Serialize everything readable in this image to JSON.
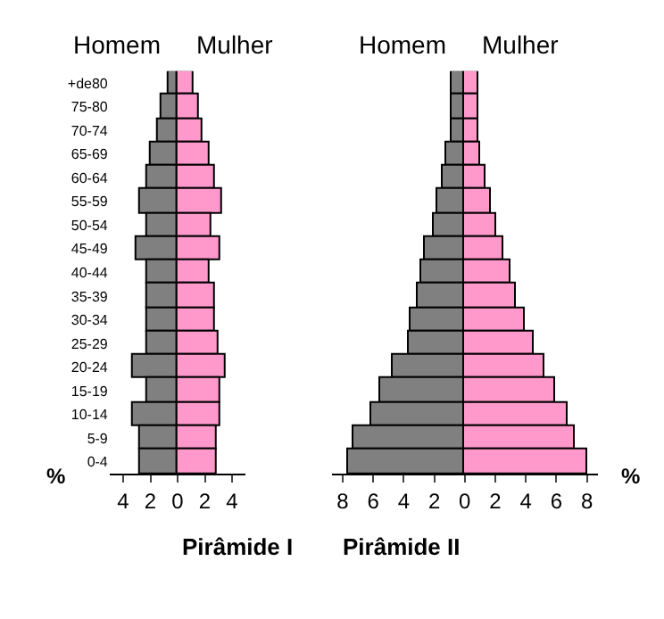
{
  "chart_data": [
    {
      "type": "bar",
      "orientation": "horizontal",
      "stacked": true,
      "title": "Pirâmide I",
      "xlabel": "%",
      "categories": [
        "+de80",
        "75-80",
        "70-74",
        "65-69",
        "60-64",
        "55-59",
        "50-54",
        "45-49",
        "40-44",
        "35-39",
        "30-34",
        "25-29",
        "20-24",
        "15-19",
        "10-14",
        "5-9",
        "0-4"
      ],
      "series": [
        {
          "name": "Homem",
          "color": "#808080",
          "values": [
            -0.7,
            -1.2,
            -1.4,
            -2.0,
            -2.2,
            -2.8,
            -2.2,
            -3.0,
            -2.2,
            -2.2,
            -2.2,
            -2.2,
            -3.3,
            -2.3,
            -3.3,
            -2.8,
            -2.8
          ]
        },
        {
          "name": "Mulher",
          "color": "#ff99cc",
          "values": [
            1.2,
            1.6,
            1.8,
            2.3,
            2.7,
            3.3,
            2.5,
            3.1,
            2.3,
            2.7,
            2.7,
            3.0,
            3.5,
            3.1,
            3.1,
            2.9,
            2.9
          ]
        }
      ],
      "xlim": [
        -5,
        5
      ],
      "xticks": [
        {
          "value": -4,
          "label": "4"
        },
        {
          "value": -2,
          "label": "2"
        },
        0,
        2,
        4
      ]
    },
    {
      "type": "bar",
      "orientation": "horizontal",
      "stacked": true,
      "title": "Pirâmide II",
      "xlabel": "%",
      "tick_labels": "x",
      "categories": [
        null,
        null,
        null,
        null,
        null,
        null,
        null,
        null,
        null,
        null,
        null,
        null,
        null,
        null,
        null,
        null,
        null
      ],
      "series": [
        {
          "name": "Homem",
          "color": "#808080",
          "values": [
            -0.9,
            -0.9,
            -0.9,
            -1.2,
            -1.4,
            -1.8,
            -2.0,
            -2.6,
            -2.8,
            -3.1,
            -3.5,
            -3.7,
            -4.7,
            -5.5,
            -6.1,
            -7.3,
            -7.7
          ]
        },
        {
          "name": "Mulher",
          "color": "#ff99cc",
          "values": [
            0.9,
            0.9,
            0.9,
            1.0,
            1.4,
            1.7,
            2.0,
            2.5,
            3.0,
            3.4,
            3.9,
            4.5,
            5.2,
            5.9,
            6.7,
            7.2,
            8.0
          ]
        }
      ],
      "xlim": [
        -8.7,
        8.7
      ],
      "xticks": [
        {
          "value": -8,
          "label": "8"
        },
        {
          "value": -6,
          "label": "6"
        },
        {
          "value": -4,
          "label": "4"
        },
        {
          "value": -2,
          "label": "2"
        },
        0,
        2,
        4,
        6,
        8
      ]
    }
  ]
}
